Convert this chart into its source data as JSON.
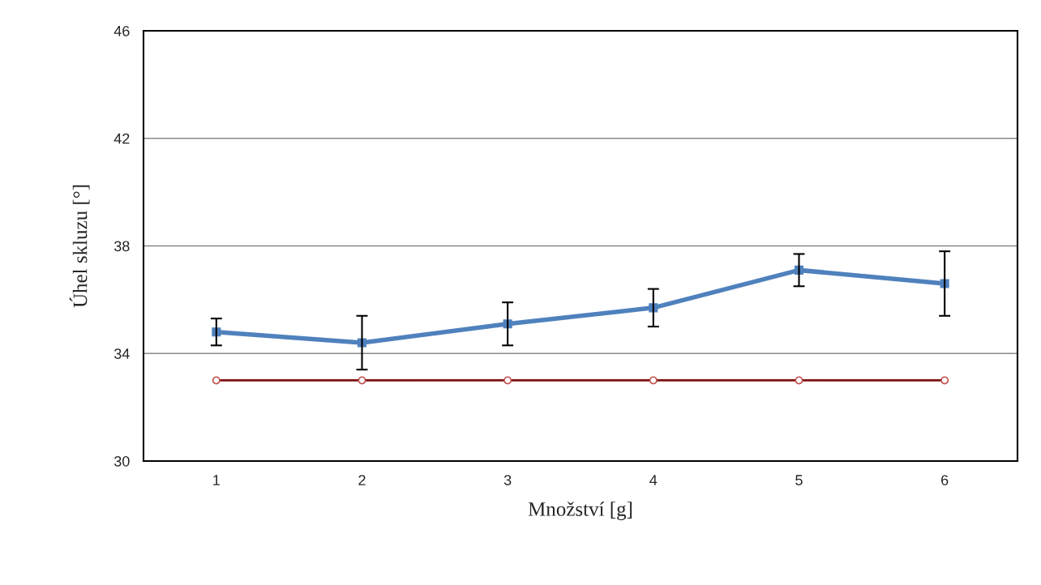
{
  "chart_data": {
    "type": "line",
    "xlabel": "Množství [g]",
    "ylabel": "Úhel skluzu [°]",
    "categories": [
      "1",
      "2",
      "3",
      "4",
      "5",
      "6"
    ],
    "series": [
      {
        "color": "#4f81bd",
        "values": [
          34.8,
          34.4,
          35.1,
          35.7,
          37.1,
          36.6
        ],
        "errors": [
          0.5,
          1.0,
          0.8,
          0.7,
          0.6,
          1.2
        ],
        "marker": "square"
      },
      {
        "color": "#7f1010",
        "values": [
          33.0,
          33.0,
          33.0,
          33.0,
          33.0,
          33.0
        ],
        "marker": "circle"
      }
    ],
    "ylim": [
      30,
      46
    ],
    "yticks": [
      30,
      34,
      38,
      42,
      46
    ],
    "grid": "y",
    "line_style": "solid"
  }
}
